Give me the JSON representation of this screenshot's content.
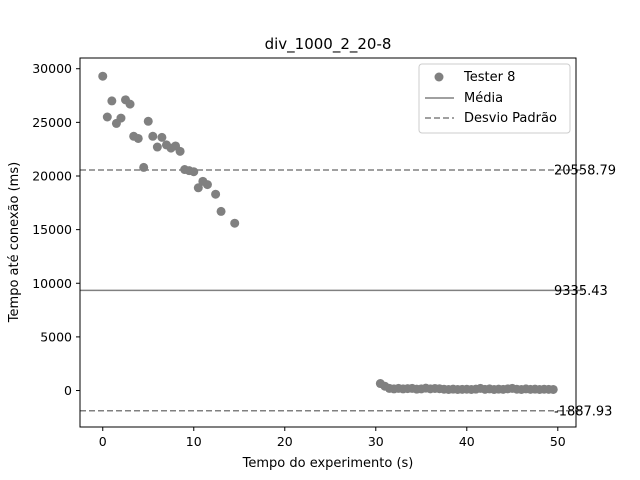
{
  "chart_data": {
    "type": "scatter",
    "title": "div_1000_2_20-8",
    "xlabel": "Tempo do experimento (s)",
    "ylabel": "Tempo até conexão (ms)",
    "xlim": [
      -2.5,
      52
    ],
    "ylim": [
      -3400,
      31000
    ],
    "xticks": [
      0,
      10,
      20,
      30,
      40,
      50
    ],
    "yticks": [
      0,
      5000,
      10000,
      15000,
      20000,
      25000,
      30000
    ],
    "grid": false,
    "legend_position": "top-right",
    "series": [
      {
        "name": "Tester 8",
        "color": "#808080",
        "points": [
          [
            0.0,
            29300
          ],
          [
            0.5,
            25500
          ],
          [
            1.0,
            27000
          ],
          [
            1.5,
            24900
          ],
          [
            2.0,
            25400
          ],
          [
            2.5,
            27100
          ],
          [
            3.0,
            26700
          ],
          [
            3.4,
            23700
          ],
          [
            3.9,
            23500
          ],
          [
            4.5,
            20800
          ],
          [
            5.0,
            25100
          ],
          [
            5.5,
            23700
          ],
          [
            6.0,
            22700
          ],
          [
            6.5,
            23600
          ],
          [
            7.0,
            22900
          ],
          [
            7.5,
            22600
          ],
          [
            8.0,
            22800
          ],
          [
            8.5,
            22300
          ],
          [
            9.0,
            20600
          ],
          [
            9.5,
            20500
          ],
          [
            10.0,
            20400
          ],
          [
            10.5,
            18900
          ],
          [
            11.0,
            19500
          ],
          [
            11.5,
            19200
          ],
          [
            12.4,
            18300
          ],
          [
            13.0,
            16700
          ],
          [
            14.5,
            15600
          ],
          [
            30.5,
            650
          ],
          [
            31.0,
            400
          ],
          [
            31.5,
            200
          ],
          [
            32.0,
            150
          ],
          [
            32.5,
            200
          ],
          [
            33.0,
            150
          ],
          [
            33.5,
            180
          ],
          [
            34.0,
            200
          ],
          [
            34.5,
            130
          ],
          [
            35.0,
            150
          ],
          [
            35.5,
            220
          ],
          [
            36.0,
            160
          ],
          [
            36.5,
            190
          ],
          [
            37.0,
            170
          ],
          [
            37.5,
            120
          ],
          [
            38.0,
            100
          ],
          [
            38.5,
            130
          ],
          [
            39.0,
            100
          ],
          [
            39.5,
            110
          ],
          [
            40.0,
            120
          ],
          [
            40.5,
            100
          ],
          [
            41.0,
            130
          ],
          [
            41.5,
            200
          ],
          [
            42.0,
            110
          ],
          [
            42.5,
            150
          ],
          [
            43.0,
            100
          ],
          [
            43.5,
            130
          ],
          [
            44.0,
            110
          ],
          [
            44.5,
            160
          ],
          [
            45.0,
            200
          ],
          [
            45.5,
            120
          ],
          [
            46.0,
            100
          ],
          [
            46.5,
            150
          ],
          [
            47.0,
            110
          ],
          [
            47.5,
            130
          ],
          [
            48.0,
            100
          ],
          [
            48.5,
            120
          ],
          [
            49.0,
            110
          ],
          [
            49.5,
            100
          ]
        ]
      }
    ],
    "reference_lines": [
      {
        "name": "Desvio Padrão",
        "value": 20558.79,
        "label": "20558.79",
        "style": "dashed",
        "color": "#808080"
      },
      {
        "name": "Média",
        "value": 9335.43,
        "label": "9335.43",
        "style": "solid",
        "color": "#808080"
      },
      {
        "name": "Desvio Padrão",
        "value": -1887.93,
        "label": "-1887.93",
        "style": "dashed",
        "color": "#808080"
      }
    ],
    "legend": [
      {
        "label": "Tester 8",
        "kind": "marker"
      },
      {
        "label": "Média",
        "kind": "solid-line"
      },
      {
        "label": "Desvio Padrão",
        "kind": "dashed-line"
      }
    ]
  }
}
